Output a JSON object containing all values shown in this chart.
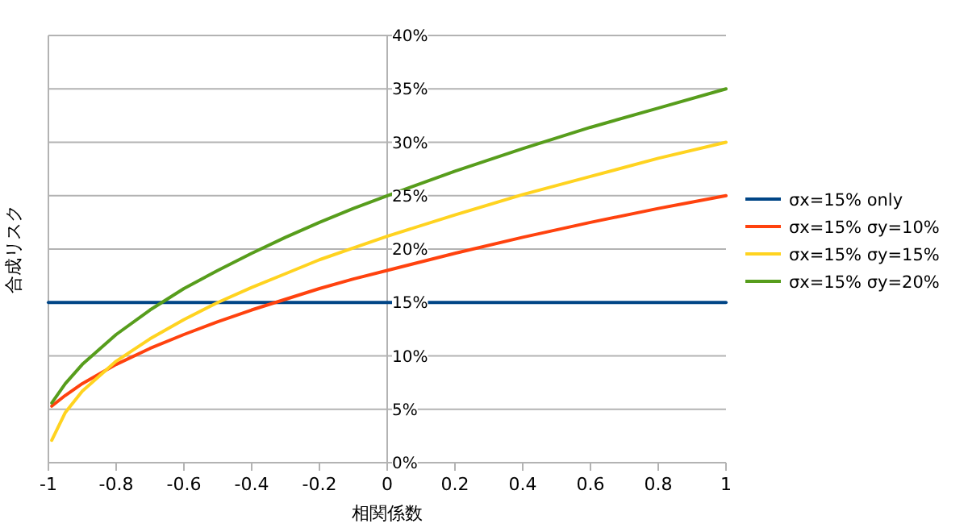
{
  "chart_data": {
    "type": "line",
    "xlabel": "相関係数",
    "ylabel": "合成リスク",
    "xlim": [
      -1,
      1
    ],
    "xticks": [
      -1,
      -0.8,
      -0.6,
      -0.4,
      -0.2,
      0,
      0.2,
      0.4,
      0.6,
      0.8,
      1
    ],
    "ylim": [
      0,
      40
    ],
    "yticks": [
      {
        "value": 0,
        "label": "0%"
      },
      {
        "value": 5,
        "label": "5%"
      },
      {
        "value": 10,
        "label": "10%"
      },
      {
        "value": 15,
        "label": "15%"
      },
      {
        "value": 20,
        "label": "20%"
      },
      {
        "value": 25,
        "label": "25%"
      },
      {
        "value": 30,
        "label": "30%"
      },
      {
        "value": 35,
        "label": "35%"
      },
      {
        "value": 40,
        "label": "40%"
      }
    ],
    "grid": "y",
    "legend": "right",
    "marker": "none",
    "line_style": "solid",
    "series": [
      {
        "name": "σx=15% only",
        "color": "#004586",
        "x": [
          -1,
          1
        ],
        "values": [
          15,
          15
        ]
      },
      {
        "name": "σx=15% σy=10%",
        "color": "#ff420e",
        "x": [
          -0.99,
          -0.95,
          -0.9,
          -0.8,
          -0.7,
          -0.6,
          -0.5,
          -0.4,
          -0.3,
          -0.2,
          -0.1,
          0,
          0.2,
          0.4,
          0.6,
          0.8,
          1
        ],
        "values": [
          5.3,
          6.3,
          7.4,
          9.2,
          10.7,
          12.0,
          13.2,
          14.3,
          15.3,
          16.3,
          17.2,
          18.0,
          19.6,
          21.1,
          22.5,
          23.8,
          25.0
        ]
      },
      {
        "name": "σx=15% σy=15%",
        "color": "#ffd320",
        "x": [
          -0.99,
          -0.95,
          -0.9,
          -0.8,
          -0.7,
          -0.6,
          -0.5,
          -0.4,
          -0.3,
          -0.2,
          -0.1,
          0,
          0.2,
          0.4,
          0.6,
          0.8,
          1
        ],
        "values": [
          2.1,
          4.7,
          6.7,
          9.5,
          11.6,
          13.4,
          15.0,
          16.4,
          17.7,
          19.0,
          20.1,
          21.2,
          23.2,
          25.1,
          26.8,
          28.5,
          30.0
        ]
      },
      {
        "name": "σx=15% σy=20%",
        "color": "#579d1c",
        "x": [
          -0.99,
          -0.95,
          -0.9,
          -0.8,
          -0.7,
          -0.6,
          -0.5,
          -0.4,
          -0.3,
          -0.2,
          -0.1,
          0,
          0.2,
          0.4,
          0.6,
          0.8,
          1
        ],
        "values": [
          5.6,
          7.4,
          9.2,
          12.0,
          14.3,
          16.3,
          18.0,
          19.6,
          21.1,
          22.5,
          23.8,
          25.0,
          27.3,
          29.4,
          31.4,
          33.2,
          35.0
        ]
      }
    ]
  }
}
